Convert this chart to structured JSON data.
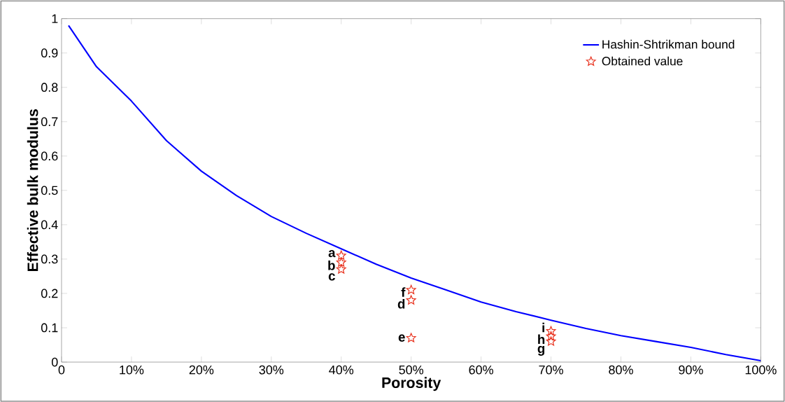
{
  "chart_data": {
    "type": "line",
    "xlabel": "Porosity",
    "ylabel": "Effective bulk modulus",
    "xlim": [
      0,
      100
    ],
    "ylim": [
      0,
      1
    ],
    "xticks": [
      {
        "value": 0,
        "label": "0"
      },
      {
        "value": 10,
        "label": "10%"
      },
      {
        "value": 20,
        "label": "20%"
      },
      {
        "value": 30,
        "label": "30%"
      },
      {
        "value": 40,
        "label": "40%"
      },
      {
        "value": 50,
        "label": "50%"
      },
      {
        "value": 60,
        "label": "60%"
      },
      {
        "value": 70,
        "label": "70%"
      },
      {
        "value": 80,
        "label": "80%"
      },
      {
        "value": 90,
        "label": "90%"
      },
      {
        "value": 100,
        "label": "100%"
      }
    ],
    "yticks": [
      0,
      0.1,
      0.2,
      0.3,
      0.4,
      0.5,
      0.6,
      0.7,
      0.8,
      0.9,
      1
    ],
    "grid": false,
    "legend": "top right",
    "series": [
      {
        "name": "Hashin-Shtrikman bound",
        "color": "#0000ff",
        "marker": "none",
        "line_style": "solid",
        "x": [
          1,
          5,
          10,
          15,
          20,
          25,
          30,
          35,
          40,
          45,
          50,
          55,
          60,
          65,
          70,
          75,
          80,
          85,
          90,
          95,
          100
        ],
        "values": [
          0.98,
          0.86,
          0.76,
          0.645,
          0.556,
          0.485,
          0.424,
          0.375,
          0.33,
          0.285,
          0.245,
          0.21,
          0.175,
          0.147,
          0.122,
          0.098,
          0.077,
          0.06,
          0.043,
          0.022,
          0.004
        ]
      },
      {
        "name": "Obtained value",
        "type": "scatter",
        "color": "#e8321e",
        "marker": "star",
        "x": [
          40,
          40,
          40,
          50,
          50,
          50,
          70,
          70,
          70
        ],
        "values": [
          0.31,
          0.29,
          0.27,
          0.21,
          0.18,
          0.07,
          0.09,
          0.075,
          0.06
        ]
      }
    ],
    "annotations": [
      {
        "text": "a",
        "x": 40,
        "y": 0.31
      },
      {
        "text": "b",
        "x": 40,
        "y": 0.29
      },
      {
        "text": "c",
        "x": 40,
        "y": 0.27
      },
      {
        "text": "f",
        "x": 50,
        "y": 0.21
      },
      {
        "text": "d",
        "x": 50,
        "y": 0.18
      },
      {
        "text": "e",
        "x": 50,
        "y": 0.07
      },
      {
        "text": "i",
        "x": 70,
        "y": 0.09
      },
      {
        "text": "h",
        "x": 70,
        "y": 0.075
      },
      {
        "text": "g",
        "x": 70,
        "y": 0.06
      }
    ]
  }
}
